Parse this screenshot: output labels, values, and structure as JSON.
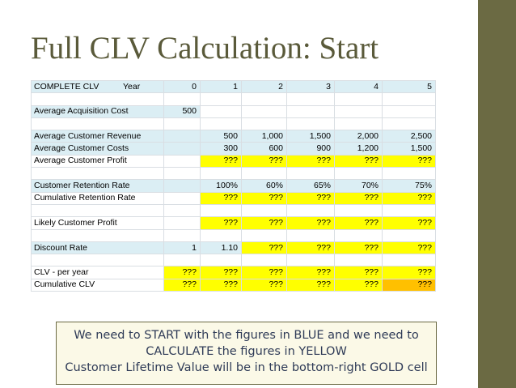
{
  "title": "Full CLV Calculation: Start",
  "table": {
    "header": {
      "label": "COMPLETE CLV",
      "year_label": "Year",
      "years": [
        "0",
        "1",
        "2",
        "3",
        "4",
        "5"
      ]
    },
    "acquisition": {
      "label": "Average Acquisition Cost",
      "values": [
        "500"
      ]
    },
    "revenue": {
      "label": "Average Customer Revenue",
      "values": [
        "500",
        "1,000",
        "1,500",
        "2,000",
        "2,500"
      ]
    },
    "costs": {
      "label": "Average Customer Costs",
      "values": [
        "300",
        "600",
        "900",
        "1,200",
        "1,500"
      ]
    },
    "profit": {
      "label": "Average Customer Profit",
      "values": [
        "???",
        "???",
        "???",
        "???",
        "???"
      ]
    },
    "retention": {
      "label": "Customer Retention Rate",
      "values": [
        "100%",
        "60%",
        "65%",
        "70%",
        "75%"
      ]
    },
    "cum_retention": {
      "label": "Cumulative Retention Rate",
      "values": [
        "???",
        "???",
        "???",
        "???",
        "???"
      ]
    },
    "likely_profit": {
      "label": "Likely Customer Profit",
      "values": [
        "???",
        "???",
        "???",
        "???",
        "???"
      ]
    },
    "discount": {
      "label": "Discount Rate",
      "values": [
        "1",
        "1.10",
        "???",
        "???",
        "???",
        "???"
      ]
    },
    "clv_year": {
      "label": "CLV - per year",
      "values": [
        "???",
        "???",
        "???",
        "???",
        "???",
        "???"
      ]
    },
    "cum_clv": {
      "label": "Cumulative CLV",
      "values": [
        "???",
        "???",
        "???",
        "???",
        "???",
        "???"
      ]
    }
  },
  "note": {
    "line1": "We need to START with the figures in BLUE and we need to",
    "line2": "CALCULATE the figures in YELLOW",
    "line3": "Customer Lifetime Value will be in the bottom-right GOLD cell"
  },
  "colors": {
    "blue": "#dbeef4",
    "yellow": "#ffff00",
    "gold": "#ffc000",
    "sidebar": "#6b6a43"
  }
}
